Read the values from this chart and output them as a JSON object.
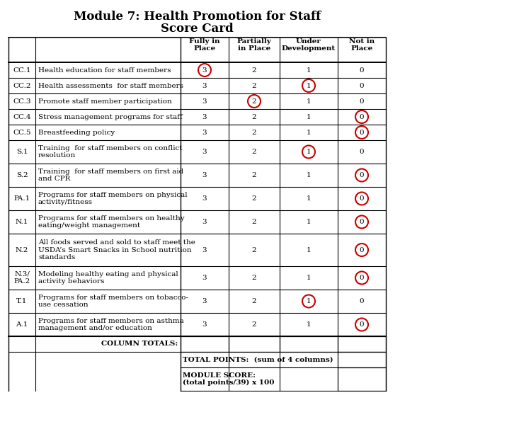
{
  "title_line1": "Module 7: Health Promotion for Staff",
  "title_line2": "Score Card",
  "col_headers": [
    "Fully in\nPlace",
    "Partially\nin Place",
    "Under\nDevelopment",
    "Not in\nPlace"
  ],
  "rows": [
    {
      "id": "CC.1",
      "desc": "Health education for staff members",
      "vals": [
        "3",
        "2",
        "1",
        "0"
      ],
      "circles": [
        0
      ]
    },
    {
      "id": "CC.2",
      "desc": "Health assessments  for staff members",
      "vals": [
        "3",
        "2",
        "1",
        "0"
      ],
      "circles": [
        2
      ]
    },
    {
      "id": "CC.3",
      "desc": "Promote staff member participation",
      "vals": [
        "3",
        "2",
        "1",
        "0"
      ],
      "circles": [
        1
      ]
    },
    {
      "id": "CC.4",
      "desc": "Stress management programs for staff",
      "vals": [
        "3",
        "2",
        "1",
        "0"
      ],
      "circles": [
        3
      ]
    },
    {
      "id": "CC.5",
      "desc": "Breastfeeding policy",
      "vals": [
        "3",
        "2",
        "1",
        "0"
      ],
      "circles": [
        3
      ]
    },
    {
      "id": "S.1",
      "desc": "Training  for staff members on conflict\nresolution",
      "vals": [
        "3",
        "2",
        "1",
        "0"
      ],
      "circles": [
        2
      ]
    },
    {
      "id": "S.2",
      "desc": "Training  for staff members on first aid\nand CPR",
      "vals": [
        "3",
        "2",
        "1",
        "0"
      ],
      "circles": [
        3
      ]
    },
    {
      "id": "PA.1",
      "desc": "Programs for staff members on physical\nactivity/fitness",
      "vals": [
        "3",
        "2",
        "1",
        "0"
      ],
      "circles": [
        3
      ]
    },
    {
      "id": "N.1",
      "desc": "Programs for staff members on healthy\neating/weight management",
      "vals": [
        "3",
        "2",
        "1",
        "0"
      ],
      "circles": [
        3
      ]
    },
    {
      "id": "N.2",
      "desc": "All foods served and sold to staff meet the\nUSDA’s Smart Snacks in School nutrition\nstandards",
      "vals": [
        "3",
        "2",
        "1",
        "0"
      ],
      "circles": [
        3
      ]
    },
    {
      "id": "N.3/\nPA.2",
      "desc": "Modeling healthy eating and physical\nactivity behaviors",
      "vals": [
        "3",
        "2",
        "1",
        "0"
      ],
      "circles": [
        3
      ]
    },
    {
      "id": "T.1",
      "desc": "Programs for staff members on tobacco-\nuse cessation",
      "vals": [
        "3",
        "2",
        "1",
        "0"
      ],
      "circles": [
        2
      ]
    },
    {
      "id": "A.1",
      "desc": "Programs for staff members on asthma\nmanagement and/or education",
      "vals": [
        "3",
        "2",
        "1",
        "0"
      ],
      "circles": [
        3
      ]
    }
  ],
  "circle_color": "#cc0000",
  "line_color": "#000000",
  "bg_color": "#ffffff",
  "text_color": "#000000",
  "font_size": 7.5,
  "title_font_size": 12
}
